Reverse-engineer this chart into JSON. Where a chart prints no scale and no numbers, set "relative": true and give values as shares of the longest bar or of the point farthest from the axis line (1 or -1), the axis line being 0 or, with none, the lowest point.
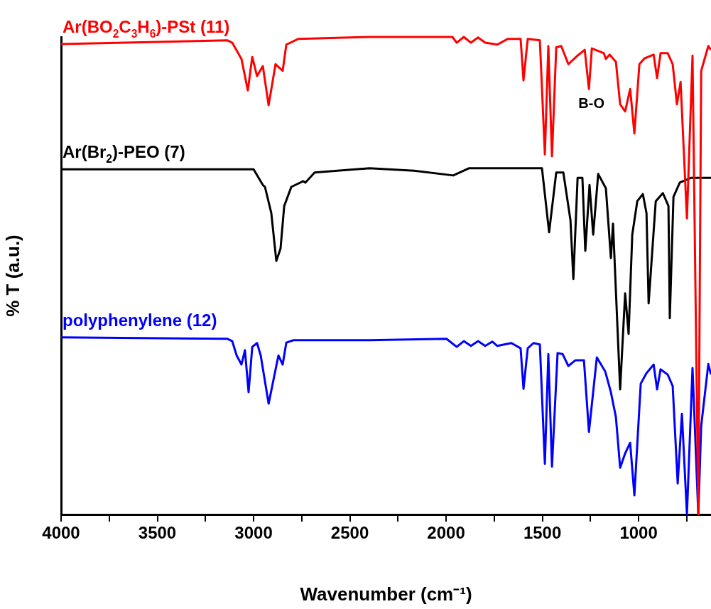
{
  "chart_data": {
    "type": "line",
    "relative": true,
    "xlabel": "Wavenumber (cm⁻¹)",
    "ylabel": "% T (a.u.)",
    "xlim": [
      4000,
      624
    ],
    "xticks": [
      4000,
      {
        "value": 3750,
        "label": null
      },
      3500,
      {
        "value": 3250,
        "label": null
      },
      3000,
      {
        "value": 2750,
        "label": null
      },
      2500,
      {
        "value": 2250,
        "label": null
      },
      2000,
      {
        "value": 1750,
        "label": null
      },
      1500,
      {
        "value": 1250,
        "label": null
      },
      1000,
      {
        "value": 750,
        "label": null
      }
    ],
    "annotations": [
      "B-O"
    ],
    "series": [
      {
        "name": "Ar(BO$_{2}$C$_{3}$H$_{6}$)-PSt (11)",
        "color": "#ff0000",
        "x": [
          4000,
          3137,
          3111,
          3063,
          3030,
          3007,
          2982,
          2952,
          2922,
          2886,
          2849,
          2830,
          2767,
          2398,
          1967,
          1945,
          1908,
          1871,
          1834,
          1797,
          1734,
          1679,
          1613,
          1598,
          1576,
          1513,
          1487,
          1469,
          1450,
          1428,
          1402,
          1365,
          1317,
          1280,
          1258,
          1243,
          1181,
          1170,
          1151,
          1118,
          1096,
          1070,
          1044,
          1022,
          996,
          970,
          922,
          904,
          886,
          849,
          823,
          801,
          782,
          749,
          720,
          690,
          675,
          638,
          624
        ],
        "values": [
          0.985,
          0.993,
          0.988,
          0.954,
          0.888,
          0.958,
          0.918,
          0.939,
          0.857,
          0.943,
          0.929,
          0.984,
          0.996,
          1.0,
          1.0,
          0.988,
          1.0,
          0.988,
          0.999,
          0.988,
          0.984,
          0.996,
          0.996,
          0.909,
          0.996,
          0.993,
          0.754,
          0.981,
          0.75,
          0.978,
          0.981,
          0.943,
          0.961,
          0.973,
          0.891,
          0.976,
          0.966,
          0.954,
          0.963,
          0.948,
          0.859,
          0.844,
          0.891,
          0.798,
          0.943,
          0.955,
          0.963,
          0.914,
          0.966,
          0.966,
          0.943,
          0.859,
          0.906,
          0.62,
          0.961,
          0,
          0.929,
          0.981,
          0.973
        ]
      },
      {
        "name": "Ar(Br$_{2}$)-PEO (7)",
        "color": "#000000",
        "x": [
          4000,
          3000,
          2952,
          2941,
          2908,
          2882,
          2860,
          2841,
          2804,
          2742,
          2731,
          2683,
          2398,
          2166,
          1963,
          1882,
          1502,
          1465,
          1428,
          1391,
          1354,
          1339,
          1317,
          1292,
          1277,
          1255,
          1236,
          1210,
          1170,
          1144,
          1133,
          1096,
          1070,
          1052,
          1033,
          1007,
          978,
          959,
          948,
          911,
          874,
          845,
          838,
          819,
          786,
          727,
          624
        ],
        "values": [
          0.723,
          0.723,
          0.69,
          0.686,
          0.631,
          0.531,
          0.557,
          0.646,
          0.686,
          0.698,
          0.695,
          0.716,
          0.725,
          0.72,
          0.71,
          0.725,
          0.725,
          0.591,
          0.716,
          0.716,
          0.616,
          0.493,
          0.705,
          0.705,
          0.552,
          0.69,
          0.586,
          0.713,
          0.683,
          0.537,
          0.609,
          0.262,
          0.463,
          0.378,
          0.586,
          0.656,
          0.671,
          0.631,
          0.442,
          0.656,
          0.673,
          0.646,
          0.411,
          0.665,
          0.695,
          0.705,
          0.705
        ]
      },
      {
        "name": "polyphenylene (12)",
        "color": "#0000ff",
        "x": [
          4000,
          3137,
          3111,
          3088,
          3063,
          3045,
          3026,
          3007,
          2982,
          2963,
          2922,
          2871,
          2849,
          2830,
          2793,
          2398,
          1998,
          1945,
          1908,
          1871,
          1834,
          1797,
          1760,
          1734,
          1661,
          1613,
          1598,
          1576,
          1546,
          1513,
          1487,
          1469,
          1450,
          1421,
          1395,
          1365,
          1328,
          1284,
          1258,
          1217,
          1173,
          1144,
          1118,
          1096,
          1070,
          1044,
          1022,
          989,
          959,
          922,
          904,
          886,
          849,
          823,
          797,
          775,
          749,
          720,
          690,
          675,
          638,
          624
        ],
        "values": [
          0.371,
          0.368,
          0.363,
          0.333,
          0.314,
          0.344,
          0.256,
          0.351,
          0.359,
          0.333,
          0.232,
          0.333,
          0.314,
          0.36,
          0.365,
          0.365,
          0.368,
          0.351,
          0.363,
          0.353,
          0.363,
          0.353,
          0.362,
          0.353,
          0.359,
          0.348,
          0.263,
          0.348,
          0.359,
          0.356,
          0.106,
          0.336,
          0.1,
          0.338,
          0.336,
          0.311,
          0.323,
          0.323,
          0.173,
          0.329,
          0.299,
          0.256,
          0.204,
          0.098,
          0.128,
          0.15,
          0.04,
          0.274,
          0.296,
          0.314,
          0.262,
          0.304,
          0.293,
          0.269,
          0.065,
          0.211,
          0,
          0.307,
          0,
          0.185,
          0.315,
          0.293
        ]
      }
    ]
  }
}
